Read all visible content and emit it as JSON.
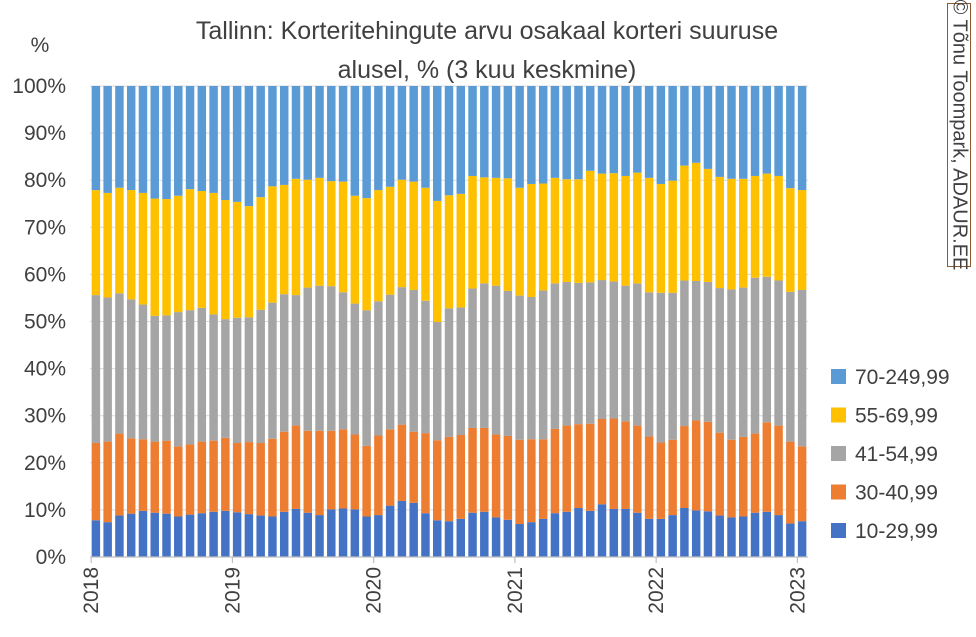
{
  "credit": "© Tõnu Toompark, ADAUR.EE",
  "chart_data": {
    "type": "bar",
    "stacked": true,
    "title": "Tallinn: Korteritehingute arvu osakaal korteri suuruse alusel, % (3 kuu keskmine)",
    "title_lines": [
      "Tallinn: Korteritehingute arvu osakaal korteri suuruse",
      "alusel, % (3 kuu keskmine)"
    ],
    "ylabel": "%",
    "ylim": [
      0,
      100
    ],
    "yticks": [
      "0%",
      "10%",
      "20%",
      "30%",
      "40%",
      "50%",
      "60%",
      "70%",
      "80%",
      "90%",
      "100%"
    ],
    "xticks": [
      "2018",
      "2019",
      "2020",
      "2021",
      "2022",
      "2023"
    ],
    "x_start": "2018-01",
    "x_end": "2023-01",
    "legend_position": "right",
    "series": [
      {
        "name": "10-29,99",
        "color": "#4472C4",
        "values": [
          7.8,
          7.4,
          8.8,
          9.2,
          9.8,
          9.4,
          9.2,
          8.6,
          9.0,
          9.3,
          9.6,
          9.8,
          9.5,
          9.1,
          8.8,
          8.6,
          9.6,
          10.2,
          9.4,
          8.9,
          10.1,
          10.3,
          10.1,
          8.6,
          8.9,
          10.9,
          11.9,
          11.5,
          9.3,
          7.8,
          7.6,
          8.1,
          9.4,
          9.6,
          8.4,
          7.9,
          7.0,
          7.4,
          8.1,
          9.3,
          9.6,
          10.4,
          9.8,
          11.2,
          10.2,
          10.2,
          9.4,
          8.1,
          8.1,
          8.9,
          10.4,
          9.9,
          9.7,
          8.8,
          8.4,
          8.6,
          9.4,
          9.6,
          8.9,
          7.1,
          7.6
        ]
      },
      {
        "name": "30-40,99",
        "color": "#ED7D31",
        "values": [
          16.4,
          17.1,
          17.4,
          16.0,
          15.2,
          15.1,
          15.5,
          14.9,
          14.9,
          15.2,
          15.1,
          15.5,
          14.7,
          15.3,
          15.4,
          16.5,
          17.0,
          17.7,
          17.4,
          17.9,
          16.7,
          16.8,
          15.9,
          15.0,
          16.9,
          16.2,
          16.2,
          15.1,
          17.0,
          17.0,
          17.9,
          17.8,
          18.0,
          17.8,
          17.6,
          17.8,
          17.9,
          17.6,
          16.9,
          17.9,
          18.3,
          17.8,
          18.5,
          18.1,
          19.2,
          18.6,
          18.5,
          17.5,
          16.2,
          16.0,
          17.4,
          19.1,
          19.0,
          17.6,
          16.5,
          16.9,
          16.8,
          19.0,
          19.0,
          17.4,
          15.9
        ]
      },
      {
        "name": "41-54,99",
        "color": "#A5A5A5",
        "values": [
          31.4,
          30.6,
          29.8,
          29.5,
          28.6,
          26.7,
          26.6,
          28.5,
          28.5,
          28.4,
          26.8,
          25.2,
          26.6,
          26.5,
          28.3,
          28.9,
          29.2,
          27.7,
          30.4,
          30.8,
          30.7,
          29.1,
          27.8,
          28.8,
          28.5,
          28.6,
          29.2,
          30.1,
          28.1,
          25.1,
          27.3,
          27.1,
          29.6,
          30.7,
          31.6,
          30.8,
          30.6,
          30.2,
          31.6,
          30.9,
          30.5,
          30.0,
          30.0,
          29.5,
          29.1,
          28.8,
          30.2,
          30.6,
          31.8,
          31.2,
          30.9,
          29.6,
          29.7,
          30.7,
          31.9,
          31.7,
          33.1,
          30.9,
          30.8,
          31.8,
          33.2
        ]
      },
      {
        "name": "55-69,99",
        "color": "#FFC000",
        "values": [
          22.3,
          22.2,
          22.4,
          23.2,
          23.7,
          24.9,
          24.7,
          24.7,
          25.7,
          24.8,
          25.8,
          25.3,
          24.6,
          23.6,
          23.9,
          24.7,
          23.2,
          24.7,
          22.9,
          22.9,
          22.3,
          23.5,
          22.9,
          23.8,
          23.6,
          22.9,
          22.8,
          23.0,
          24.0,
          25.7,
          24.0,
          24.1,
          23.9,
          22.5,
          22.9,
          23.9,
          22.9,
          24.0,
          22.7,
          22.4,
          21.8,
          22.0,
          23.7,
          22.6,
          23.0,
          23.3,
          23.5,
          24.3,
          23.1,
          23.8,
          24.4,
          25.1,
          24.0,
          23.6,
          23.5,
          23.1,
          21.6,
          21.9,
          22.2,
          22.0,
          21.2
        ]
      },
      {
        "name": "70-249,99",
        "color": "#5B9BD5",
        "values": [
          22.1,
          22.7,
          21.6,
          22.1,
          22.7,
          23.9,
          24.0,
          23.3,
          21.9,
          22.3,
          22.7,
          24.2,
          24.6,
          25.5,
          23.6,
          21.3,
          21.0,
          19.7,
          19.9,
          19.5,
          20.2,
          20.3,
          23.3,
          23.8,
          22.1,
          21.4,
          19.9,
          20.3,
          21.6,
          24.4,
          23.2,
          22.9,
          19.1,
          19.4,
          19.5,
          19.6,
          21.6,
          20.8,
          20.7,
          19.5,
          19.8,
          19.8,
          18.0,
          18.6,
          18.5,
          19.1,
          18.4,
          19.5,
          20.8,
          20.1,
          16.9,
          16.3,
          17.6,
          19.3,
          19.7,
          19.7,
          19.1,
          18.6,
          19.1,
          21.7,
          22.1
        ]
      }
    ]
  }
}
